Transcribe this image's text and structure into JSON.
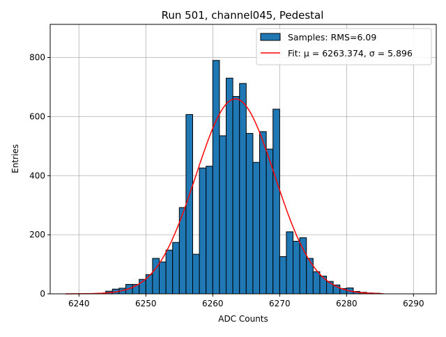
{
  "chart_data": {
    "type": "bar",
    "title": "Run 501, channel045, Pedestal",
    "xlabel": "ADC Counts",
    "ylabel": "Entries",
    "xlim": [
      6235.7,
      6293.4
    ],
    "ylim": [
      0,
      912
    ],
    "grid": true,
    "legend_placement": "top-right",
    "xticks": [
      6240,
      6250,
      6260,
      6270,
      6280,
      6290
    ],
    "yticks": [
      0,
      200,
      400,
      600,
      800
    ],
    "bin_width": 1,
    "bin_edges_start": [
      6243,
      6244,
      6245,
      6246,
      6247,
      6248,
      6249,
      6250,
      6251,
      6252,
      6253,
      6254,
      6255,
      6256,
      6257,
      6258,
      6259,
      6260,
      6261,
      6262,
      6263,
      6264,
      6265,
      6266,
      6267,
      6268,
      6269,
      6270,
      6271,
      6272,
      6273,
      6274,
      6275,
      6276,
      6277,
      6278,
      6279,
      6280,
      6281,
      6282,
      6283,
      6284
    ],
    "values": [
      2,
      9,
      16,
      19,
      32,
      32,
      49,
      65,
      120,
      108,
      148,
      174,
      292,
      607,
      134,
      426,
      432,
      790,
      535,
      730,
      668,
      712,
      543,
      445,
      549,
      490,
      625,
      126,
      210,
      178,
      190,
      120,
      75,
      60,
      42,
      30,
      18,
      20,
      8,
      5,
      3,
      2
    ],
    "series": [
      {
        "name": "Samples: RMS=6.09",
        "kind": "histogram",
        "color": "#1f77b4",
        "edgecolor": "#000000"
      },
      {
        "name": "Fit: μ = 6263.374, σ = 5.896",
        "kind": "gaussian",
        "color": "#ff0000",
        "mu": 6263.374,
        "sigma": 5.896,
        "amplitude": 660,
        "x_range": [
          6238,
          6285.5
        ]
      }
    ]
  }
}
